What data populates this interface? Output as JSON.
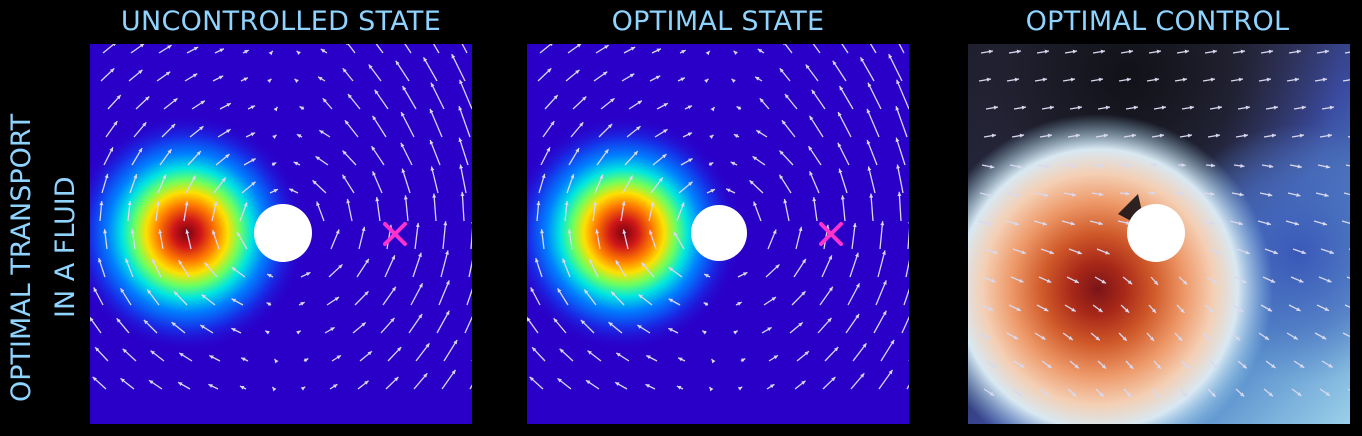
{
  "side_title": {
    "line1": "OPTIMAL TRANSPORT",
    "line2": "IN A FLUID"
  },
  "panels": [
    {
      "title": "UNCONTROLLED STATE",
      "kind": "state"
    },
    {
      "title": "OPTIMAL STATE",
      "kind": "state"
    },
    {
      "title": "OPTIMAL CONTROL",
      "kind": "control"
    }
  ],
  "colors": {
    "title_text": "#8fd3ff",
    "state_background": "#2a00c8",
    "target_marker": "#ff33cc",
    "obstacle": "#ffffff",
    "arrows": "#d8d8ee"
  },
  "icons": {
    "target": "x-marker-icon",
    "obstacle": "disk-obstacle"
  }
}
